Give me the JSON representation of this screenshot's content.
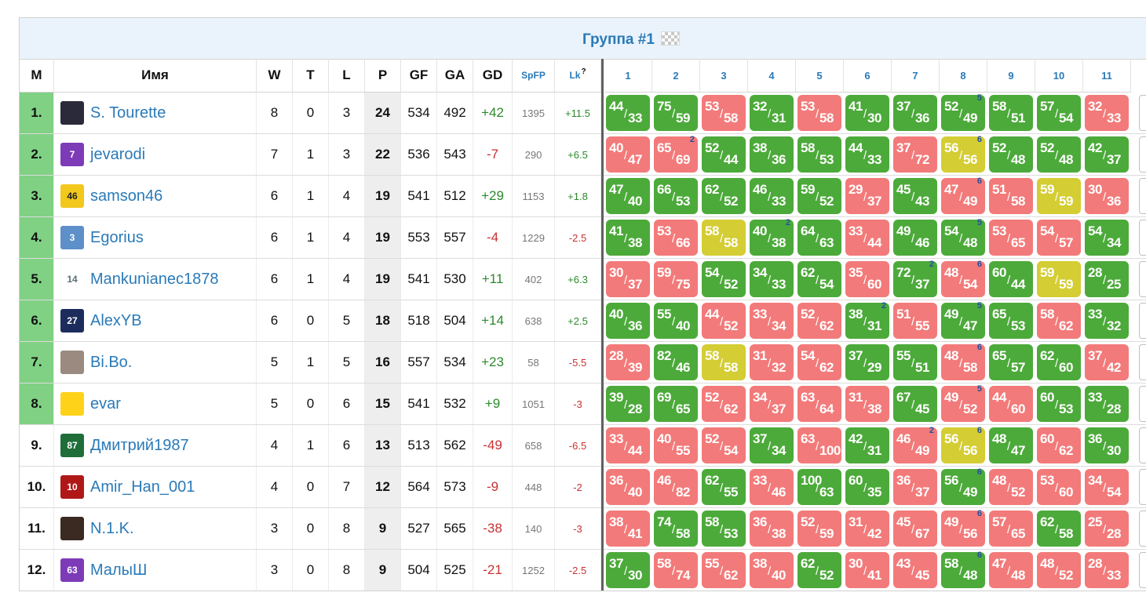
{
  "group": {
    "title": "Группа #1",
    "flag_icon": "checkered-flag-icon"
  },
  "headers": {
    "m": "М",
    "name": "Имя",
    "w": "W",
    "t": "T",
    "l": "L",
    "p": "P",
    "gf": "GF",
    "ga": "GA",
    "gd": "GD",
    "spfp": "SpFP",
    "lk": "Lk",
    "lk_sup": "?",
    "opponents": [
      "1",
      "2",
      "3",
      "4",
      "5",
      "6",
      "7",
      "8",
      "9",
      "10",
      "11"
    ]
  },
  "colors": {
    "win": "#4caa3a",
    "loss": "#f37a7a",
    "draw": "#d4cd34",
    "qualified": "#80d184",
    "link": "#2a7ab8"
  },
  "rows": [
    {
      "rank": "1.",
      "name": "S. Tourette",
      "w": "8",
      "t": "0",
      "l": "3",
      "p": "24",
      "gf": "534",
      "ga": "492",
      "gd": "+42",
      "spfp": "1395",
      "lk": "+11.5",
      "qualified": true,
      "avatar": {
        "icon": "player-photo-icon",
        "color": "#2a2a3a",
        "text": ""
      },
      "matches": [
        [
          "44",
          "33",
          "g",
          ""
        ],
        [
          "75",
          "59",
          "g",
          ""
        ],
        [
          "53",
          "58",
          "r",
          ""
        ],
        [
          "32",
          "31",
          "g",
          ""
        ],
        [
          "53",
          "58",
          "r",
          ""
        ],
        [
          "41",
          "30",
          "g",
          ""
        ],
        [
          "37",
          "36",
          "g",
          ""
        ],
        [
          "52",
          "49",
          "g",
          "5"
        ],
        [
          "58",
          "51",
          "g",
          ""
        ],
        [
          "57",
          "54",
          "g",
          ""
        ],
        [
          "32",
          "33",
          "r",
          ""
        ]
      ]
    },
    {
      "rank": "2.",
      "name": "jevarodi",
      "w": "7",
      "t": "1",
      "l": "3",
      "p": "22",
      "gf": "536",
      "ga": "543",
      "gd": "-7",
      "spfp": "290",
      "lk": "+6.5",
      "qualified": true,
      "avatar": {
        "icon": "purple-jersey-icon",
        "color": "#7d3bb8",
        "text": "7"
      },
      "matches": [
        [
          "40",
          "47",
          "r",
          ""
        ],
        [
          "65",
          "69",
          "r",
          "2"
        ],
        [
          "52",
          "44",
          "g",
          ""
        ],
        [
          "38",
          "36",
          "g",
          ""
        ],
        [
          "58",
          "53",
          "g",
          ""
        ],
        [
          "44",
          "33",
          "g",
          ""
        ],
        [
          "37",
          "72",
          "r",
          ""
        ],
        [
          "56",
          "56",
          "y",
          "6"
        ],
        [
          "52",
          "48",
          "g",
          ""
        ],
        [
          "52",
          "48",
          "g",
          ""
        ],
        [
          "42",
          "37",
          "g",
          ""
        ]
      ]
    },
    {
      "rank": "3.",
      "name": "samson46",
      "w": "6",
      "t": "1",
      "l": "4",
      "p": "19",
      "gf": "541",
      "ga": "512",
      "gd": "+29",
      "spfp": "1153",
      "lk": "+1.8",
      "qualified": true,
      "avatar": {
        "icon": "yellow-jersey-icon",
        "color": "#f2c81c",
        "text": "46"
      },
      "matches": [
        [
          "47",
          "40",
          "g",
          ""
        ],
        [
          "66",
          "53",
          "g",
          ""
        ],
        [
          "62",
          "52",
          "g",
          ""
        ],
        [
          "46",
          "33",
          "g",
          ""
        ],
        [
          "59",
          "52",
          "g",
          ""
        ],
        [
          "29",
          "37",
          "r",
          ""
        ],
        [
          "45",
          "43",
          "g",
          ""
        ],
        [
          "47",
          "49",
          "r",
          "6"
        ],
        [
          "51",
          "58",
          "r",
          ""
        ],
        [
          "59",
          "59",
          "y",
          ""
        ],
        [
          "30",
          "36",
          "r",
          ""
        ]
      ]
    },
    {
      "rank": "4.",
      "name": "Egorius",
      "w": "6",
      "t": "1",
      "l": "4",
      "p": "19",
      "gf": "553",
      "ga": "557",
      "gd": "-4",
      "spfp": "1229",
      "lk": "-2.5",
      "qualified": true,
      "avatar": {
        "icon": "white-jersey-icon",
        "color": "#5d8fc9",
        "text": "3"
      },
      "matches": [
        [
          "41",
          "38",
          "g",
          ""
        ],
        [
          "53",
          "66",
          "r",
          ""
        ],
        [
          "58",
          "58",
          "y",
          ""
        ],
        [
          "40",
          "38",
          "g",
          "2"
        ],
        [
          "64",
          "63",
          "g",
          ""
        ],
        [
          "33",
          "44",
          "r",
          ""
        ],
        [
          "49",
          "46",
          "g",
          ""
        ],
        [
          "54",
          "48",
          "g",
          "5"
        ],
        [
          "53",
          "65",
          "r",
          ""
        ],
        [
          "54",
          "57",
          "r",
          ""
        ],
        [
          "54",
          "34",
          "g",
          ""
        ]
      ]
    },
    {
      "rank": "5.",
      "name": "Mankunianec1878",
      "w": "6",
      "t": "1",
      "l": "4",
      "p": "19",
      "gf": "541",
      "ga": "530",
      "gd": "+11",
      "spfp": "402",
      "lk": "+6.3",
      "qualified": true,
      "avatar": {
        "icon": "number-14-icon",
        "color": "#ffffff",
        "text": "14"
      },
      "matches": [
        [
          "30",
          "37",
          "r",
          ""
        ],
        [
          "59",
          "75",
          "r",
          ""
        ],
        [
          "54",
          "52",
          "g",
          ""
        ],
        [
          "34",
          "33",
          "g",
          ""
        ],
        [
          "62",
          "54",
          "g",
          ""
        ],
        [
          "35",
          "60",
          "r",
          ""
        ],
        [
          "72",
          "37",
          "g",
          "2"
        ],
        [
          "48",
          "54",
          "r",
          "6"
        ],
        [
          "60",
          "44",
          "g",
          ""
        ],
        [
          "59",
          "59",
          "y",
          ""
        ],
        [
          "28",
          "25",
          "g",
          ""
        ]
      ]
    },
    {
      "rank": "6.",
      "name": "AlexYB",
      "w": "6",
      "t": "0",
      "l": "5",
      "p": "18",
      "gf": "518",
      "ga": "504",
      "gd": "+14",
      "spfp": "638",
      "lk": "+2.5",
      "qualified": true,
      "avatar": {
        "icon": "navy-jersey-icon",
        "color": "#1c2c5c",
        "text": "27"
      },
      "matches": [
        [
          "40",
          "36",
          "g",
          ""
        ],
        [
          "55",
          "40",
          "g",
          ""
        ],
        [
          "44",
          "52",
          "r",
          ""
        ],
        [
          "33",
          "34",
          "r",
          ""
        ],
        [
          "52",
          "62",
          "r",
          ""
        ],
        [
          "38",
          "31",
          "g",
          "2"
        ],
        [
          "51",
          "55",
          "r",
          ""
        ],
        [
          "49",
          "47",
          "g",
          "5"
        ],
        [
          "65",
          "53",
          "g",
          ""
        ],
        [
          "58",
          "62",
          "r",
          ""
        ],
        [
          "33",
          "32",
          "g",
          ""
        ]
      ]
    },
    {
      "rank": "7.",
      "name": "Bi.Bo.",
      "w": "5",
      "t": "1",
      "l": "5",
      "p": "16",
      "gf": "557",
      "ga": "534",
      "gd": "+23",
      "spfp": "58",
      "lk": "-5.5",
      "qualified": true,
      "avatar": {
        "icon": "astronaut-photo-icon",
        "color": "#9a8a80",
        "text": ""
      },
      "matches": [
        [
          "28",
          "39",
          "r",
          ""
        ],
        [
          "82",
          "46",
          "g",
          ""
        ],
        [
          "58",
          "58",
          "y",
          ""
        ],
        [
          "31",
          "32",
          "r",
          ""
        ],
        [
          "54",
          "62",
          "r",
          ""
        ],
        [
          "37",
          "29",
          "g",
          ""
        ],
        [
          "55",
          "51",
          "g",
          ""
        ],
        [
          "48",
          "58",
          "r",
          "6"
        ],
        [
          "65",
          "57",
          "g",
          ""
        ],
        [
          "62",
          "60",
          "g",
          ""
        ],
        [
          "37",
          "42",
          "r",
          ""
        ]
      ]
    },
    {
      "rank": "8.",
      "name": "evar",
      "w": "5",
      "t": "0",
      "l": "6",
      "p": "15",
      "gf": "541",
      "ga": "532",
      "gd": "+9",
      "spfp": "1051",
      "lk": "-3",
      "qualified": true,
      "avatar": {
        "icon": "yellow-flower-icon",
        "color": "#ffd21a",
        "text": ""
      },
      "matches": [
        [
          "39",
          "28",
          "g",
          ""
        ],
        [
          "69",
          "65",
          "g",
          ""
        ],
        [
          "52",
          "62",
          "r",
          ""
        ],
        [
          "34",
          "37",
          "r",
          ""
        ],
        [
          "63",
          "64",
          "r",
          ""
        ],
        [
          "31",
          "38",
          "r",
          ""
        ],
        [
          "67",
          "45",
          "g",
          ""
        ],
        [
          "49",
          "52",
          "r",
          "5"
        ],
        [
          "44",
          "60",
          "r",
          ""
        ],
        [
          "60",
          "53",
          "g",
          ""
        ],
        [
          "33",
          "28",
          "g",
          ""
        ]
      ]
    },
    {
      "rank": "9.",
      "name": "Дмитрий1987",
      "w": "4",
      "t": "1",
      "l": "6",
      "p": "13",
      "gf": "513",
      "ga": "562",
      "gd": "-49",
      "spfp": "658",
      "lk": "-6.5",
      "qualified": false,
      "avatar": {
        "icon": "green-jersey-icon",
        "color": "#1f6e3a",
        "text": "87"
      },
      "matches": [
        [
          "33",
          "44",
          "r",
          ""
        ],
        [
          "40",
          "55",
          "r",
          ""
        ],
        [
          "52",
          "54",
          "r",
          ""
        ],
        [
          "37",
          "34",
          "g",
          ""
        ],
        [
          "63",
          "100",
          "r",
          ""
        ],
        [
          "42",
          "31",
          "g",
          ""
        ],
        [
          "46",
          "49",
          "r",
          "2"
        ],
        [
          "56",
          "56",
          "y",
          "6"
        ],
        [
          "48",
          "47",
          "g",
          ""
        ],
        [
          "60",
          "62",
          "r",
          ""
        ],
        [
          "36",
          "30",
          "g",
          ""
        ]
      ]
    },
    {
      "rank": "10.",
      "name": "Amir_Han_001",
      "w": "4",
      "t": "0",
      "l": "7",
      "p": "12",
      "gf": "564",
      "ga": "573",
      "gd": "-9",
      "spfp": "448",
      "lk": "-2",
      "qualified": false,
      "avatar": {
        "icon": "red-black-jersey-icon",
        "color": "#b01818",
        "text": "10"
      },
      "matches": [
        [
          "36",
          "40",
          "r",
          ""
        ],
        [
          "46",
          "82",
          "r",
          ""
        ],
        [
          "62",
          "55",
          "g",
          ""
        ],
        [
          "33",
          "46",
          "r",
          ""
        ],
        [
          "100",
          "63",
          "g",
          ""
        ],
        [
          "60",
          "35",
          "g",
          ""
        ],
        [
          "36",
          "37",
          "r",
          ""
        ],
        [
          "56",
          "49",
          "g",
          "6"
        ],
        [
          "48",
          "52",
          "r",
          ""
        ],
        [
          "53",
          "60",
          "r",
          ""
        ],
        [
          "34",
          "54",
          "r",
          ""
        ]
      ]
    },
    {
      "rank": "11.",
      "name": "N.1.K.",
      "w": "3",
      "t": "0",
      "l": "8",
      "p": "9",
      "gf": "527",
      "ga": "565",
      "gd": "-38",
      "spfp": "140",
      "lk": "-3",
      "qualified": false,
      "avatar": {
        "icon": "player-photo-icon",
        "color": "#3a2a22",
        "text": ""
      },
      "matches": [
        [
          "38",
          "41",
          "r",
          ""
        ],
        [
          "74",
          "58",
          "g",
          ""
        ],
        [
          "58",
          "53",
          "g",
          ""
        ],
        [
          "36",
          "38",
          "r",
          ""
        ],
        [
          "52",
          "59",
          "r",
          ""
        ],
        [
          "31",
          "42",
          "r",
          ""
        ],
        [
          "45",
          "67",
          "r",
          ""
        ],
        [
          "49",
          "56",
          "r",
          "6"
        ],
        [
          "57",
          "65",
          "r",
          ""
        ],
        [
          "62",
          "58",
          "g",
          ""
        ],
        [
          "25",
          "28",
          "r",
          ""
        ]
      ]
    },
    {
      "rank": "12.",
      "name": "МалыШ",
      "w": "3",
      "t": "0",
      "l": "8",
      "p": "9",
      "gf": "504",
      "ga": "525",
      "gd": "-21",
      "spfp": "1252",
      "lk": "-2.5",
      "qualified": false,
      "avatar": {
        "icon": "purple-jersey-icon",
        "color": "#7d3bb8",
        "text": "63"
      },
      "matches": [
        [
          "37",
          "30",
          "g",
          ""
        ],
        [
          "58",
          "74",
          "r",
          ""
        ],
        [
          "55",
          "62",
          "r",
          ""
        ],
        [
          "38",
          "40",
          "r",
          ""
        ],
        [
          "62",
          "52",
          "g",
          ""
        ],
        [
          "30",
          "41",
          "r",
          ""
        ],
        [
          "43",
          "45",
          "r",
          ""
        ],
        [
          "58",
          "48",
          "g",
          "6"
        ],
        [
          "47",
          "48",
          "r",
          ""
        ],
        [
          "48",
          "52",
          "r",
          ""
        ],
        [
          "28",
          "33",
          "r",
          ""
        ]
      ]
    }
  ]
}
